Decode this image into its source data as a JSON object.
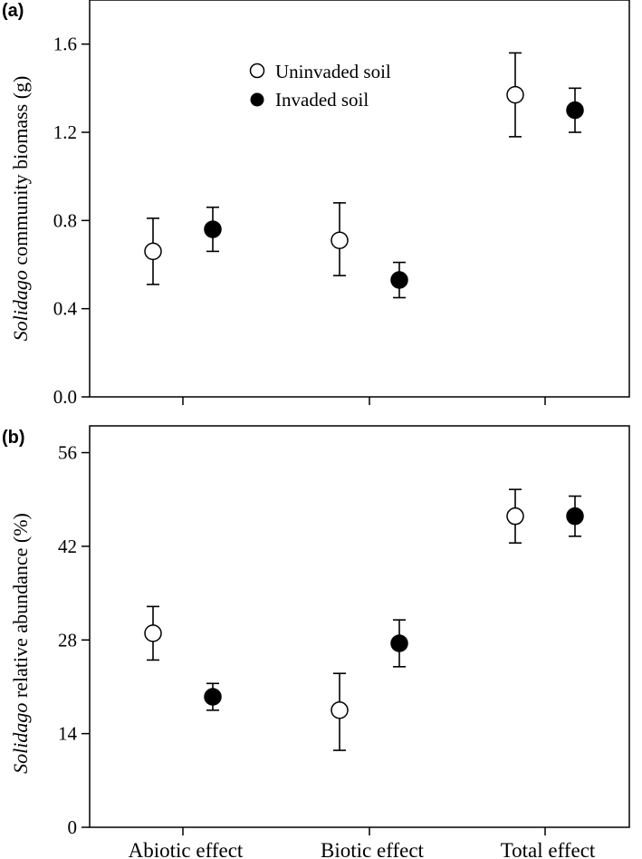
{
  "chart_data": [
    {
      "type": "scatter",
      "panel_label": "(a)",
      "ylabel_italic": "Solidago",
      "ylabel_rest": " community biomass (g)",
      "categories": [
        "Abiotic effect",
        "Biotic effect",
        "Total effect"
      ],
      "ylim": [
        0,
        1.8
      ],
      "yticks": [
        "0.0",
        "0.4",
        "0.8",
        "1.2",
        "1.6"
      ],
      "ytick_values": [
        0,
        0.4,
        0.8,
        1.2,
        1.6
      ],
      "grid": false,
      "legend_position": "top-center",
      "series": [
        {
          "name": "Uninvaded soil",
          "marker": "open-circle",
          "values": [
            0.66,
            0.71,
            1.37
          ],
          "err_low": [
            0.51,
            0.55,
            1.18
          ],
          "err_high": [
            0.81,
            0.88,
            1.56
          ]
        },
        {
          "name": "Invaded soil",
          "marker": "filled-circle",
          "values": [
            0.76,
            0.53,
            1.3
          ],
          "err_low": [
            0.66,
            0.45,
            1.2
          ],
          "err_high": [
            0.86,
            0.61,
            1.4
          ]
        }
      ]
    },
    {
      "type": "scatter",
      "panel_label": "(b)",
      "ylabel_italic": "Solidago",
      "ylabel_rest": " relative abundance (%)",
      "categories": [
        "Abiotic effect",
        "Biotic effect",
        "Total effect"
      ],
      "ylim": [
        0,
        60
      ],
      "yticks": [
        "0",
        "14",
        "28",
        "42",
        "56"
      ],
      "ytick_values": [
        0,
        14,
        28,
        42,
        56
      ],
      "grid": false,
      "series": [
        {
          "name": "Uninvaded soil",
          "marker": "open-circle",
          "values": [
            29.0,
            17.5,
            46.5
          ],
          "err_low": [
            25.0,
            11.5,
            42.5
          ],
          "err_high": [
            33.0,
            23.0,
            50.5
          ]
        },
        {
          "name": "Invaded soil",
          "marker": "filled-circle",
          "values": [
            19.5,
            27.5,
            46.5
          ],
          "err_low": [
            17.5,
            24.0,
            43.5
          ],
          "err_high": [
            21.5,
            31.0,
            49.5
          ]
        }
      ]
    }
  ]
}
